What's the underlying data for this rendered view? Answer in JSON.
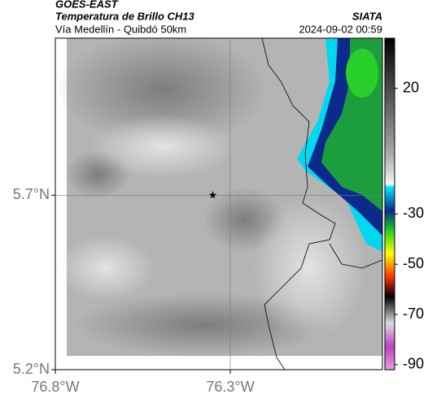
{
  "header": {
    "source": "GOES-EAST",
    "title": "Temperatura de Brillo CH13",
    "subtitle": "Vía Medellín - Quibdó 50km",
    "org": "SIATA",
    "timestamp": "2024-09-02 00:59"
  },
  "map": {
    "xlim": [
      -76.8,
      -75.865
    ],
    "ylim": [
      5.2,
      6.15
    ],
    "xticks": [
      {
        "value": -76.8,
        "label": "76.8°W"
      },
      {
        "value": -76.3,
        "label": "76.3°W"
      }
    ],
    "yticks": [
      {
        "value": 5.7,
        "label": "5.7°N"
      },
      {
        "value": 5.2,
        "label": "5.2°N"
      }
    ],
    "gridlines": {
      "lon": -76.3,
      "lat": 5.7
    },
    "marker": {
      "lon": -76.35,
      "lat": 5.7
    }
  },
  "colorbar": {
    "lim": [
      40,
      -92
    ],
    "ticks": [
      20,
      -30,
      -50,
      -70,
      -90
    ]
  }
}
